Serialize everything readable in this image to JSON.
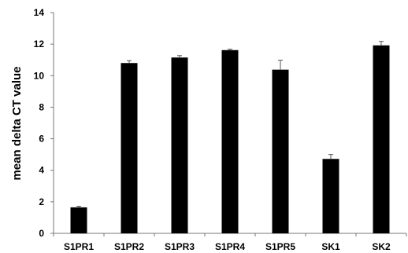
{
  "chart_data": {
    "type": "bar",
    "title": "",
    "xlabel": "",
    "ylabel": "mean delta CT value",
    "categories": [
      "S1PR1",
      "S1PR2",
      "S1PR3",
      "S1PR4",
      "S1PR5",
      "SK1",
      "SK2"
    ],
    "values": [
      1.65,
      10.8,
      11.15,
      11.62,
      10.38,
      4.72,
      11.92
    ],
    "error": [
      0.07,
      0.15,
      0.12,
      0.06,
      0.6,
      0.28,
      0.25
    ],
    "ylim": [
      0,
      14
    ],
    "yticks": [
      0,
      2,
      4,
      6,
      8,
      10,
      12,
      14
    ],
    "grid": false,
    "legend": "none",
    "bar_color": "#000000"
  }
}
